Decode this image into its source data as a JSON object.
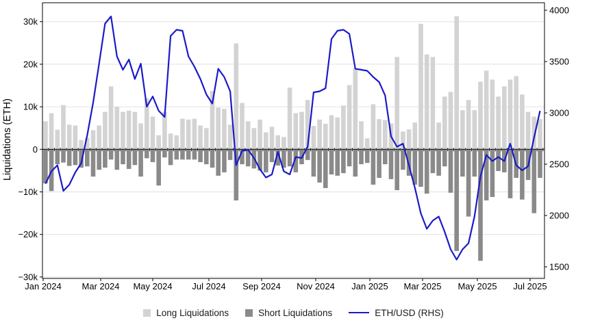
{
  "chart_data": {
    "type": "combo",
    "title": "",
    "ylabel_left": "Liquidations (ETH)",
    "x_tick_labels": [
      "Jan 2024",
      "Mar 2024",
      "May 2024",
      "Jul 2024",
      "Sep 2024",
      "Nov 2024",
      "Jan 2025",
      "Mar 2025",
      "May 2025",
      "Jul 2025"
    ],
    "y_left_tick_labels": [
      "30k",
      "20k",
      "10k",
      "0",
      "−10k",
      "−20k",
      "−30k"
    ],
    "y_left_tick_values_k": [
      30,
      20,
      10,
      0,
      -10,
      -20,
      -30
    ],
    "y_right_tick_labels": [
      "4000",
      "3500",
      "3000",
      "2500",
      "2000",
      "1500"
    ],
    "y_right_tick_values": [
      4000,
      3500,
      3000,
      2500,
      2000,
      1500
    ],
    "ylim_left_k": [
      -30.5,
      34.5
    ],
    "ylim_right": [
      1500,
      4030
    ],
    "grid": "horizontal-left-axis-only",
    "legend_position": "bottom-center",
    "x_frequency": "weekly",
    "series": [
      {
        "name": "Long Liquidations",
        "type": "bar",
        "axis": "left",
        "color": "#d3d3d3",
        "units": "thousand ETH",
        "values_k_eth": [
          6.6,
          8.5,
          4.6,
          10.4,
          5.8,
          5.6,
          2.2,
          2.7,
          4.5,
          5.6,
          8.8,
          14.8,
          10.0,
          8.8,
          9.1,
          8.8,
          6.1,
          12.0,
          7.7,
          3.3,
          8.8,
          3.7,
          3.3,
          7.2,
          7.0,
          7.2,
          5.6,
          5.0,
          13.7,
          9.8,
          9.5,
          5.8,
          24.9,
          10.9,
          6.6,
          5.0,
          7.0,
          4.0,
          5.3,
          3.3,
          2.9,
          14.5,
          8.5,
          8.8,
          11.6,
          5.5,
          7.0,
          6.0,
          8.0,
          7.5,
          10.3,
          15.1,
          19.1,
          6.6,
          2.6,
          10.6,
          7.1,
          6.9,
          6.1,
          21.7,
          4.2,
          4.7,
          6.3,
          29.5,
          22.3,
          21.7,
          6.3,
          12.4,
          13.5,
          31.3,
          9.2,
          11.6,
          9.2,
          15.9,
          18.5,
          16.4,
          12.4,
          14.8,
          16.4,
          17.2,
          12.9,
          8.8,
          7.7,
          7.1
        ]
      },
      {
        "name": "Short Liquidations",
        "type": "bar",
        "axis": "left",
        "color": "#8a8a8a",
        "units": "thousand ETH",
        "values_k_eth": [
          -8.0,
          -9.8,
          -3.5,
          -3.1,
          -3.9,
          -3.7,
          -4.3,
          -4.0,
          -6.4,
          -4.8,
          -4.3,
          -2.4,
          -4.8,
          -3.5,
          -4.6,
          -3.7,
          -6.4,
          -2.1,
          -3.0,
          -8.5,
          -1.9,
          -3.7,
          -2.4,
          -2.4,
          -2.4,
          -2.4,
          -3.0,
          -3.5,
          -4.3,
          -6.2,
          -5.4,
          -2.5,
          -12.0,
          -3.5,
          -4.0,
          -4.5,
          -5.0,
          -5.4,
          -3.0,
          -3.8,
          -4.3,
          -4.0,
          -5.4,
          -3.5,
          -2.5,
          -6.4,
          -7.8,
          -9.1,
          -5.9,
          -6.2,
          -5.6,
          -4.0,
          -6.4,
          -3.5,
          -3.2,
          -8.3,
          -6.7,
          -3.5,
          -7.0,
          -9.6,
          -4.8,
          -6.2,
          -8.3,
          -8.8,
          -10.4,
          -5.6,
          -6.2,
          -4.0,
          -10.2,
          -23.9,
          -6.4,
          -15.8,
          -6.4,
          -26.2,
          -12.0,
          -11.2,
          -5.1,
          -5.4,
          -11.5,
          -6.7,
          -11.8,
          -7.2,
          -15.0,
          -6.7
        ]
      },
      {
        "name": "ETH/USD (RHS)",
        "type": "line",
        "axis": "right",
        "color": "#1a1ac8",
        "units": "USD",
        "values_usd": [
          2310,
          2430,
          2490,
          2240,
          2300,
          2420,
          2510,
          2780,
          3100,
          3480,
          3870,
          3940,
          3550,
          3420,
          3520,
          3330,
          3480,
          3060,
          3160,
          3020,
          2960,
          3750,
          3810,
          3800,
          3550,
          3450,
          3330,
          3180,
          3090,
          3430,
          3350,
          3210,
          2490,
          2630,
          2640,
          2560,
          2450,
          2370,
          2400,
          2620,
          2430,
          2400,
          2570,
          2560,
          2670,
          3200,
          3210,
          3240,
          3720,
          3800,
          3810,
          3770,
          3430,
          3420,
          3410,
          3350,
          3300,
          3170,
          2770,
          2670,
          2700,
          2490,
          2270,
          2020,
          1870,
          1950,
          1990,
          1840,
          1670,
          1570,
          1670,
          1730,
          1990,
          2380,
          2590,
          2530,
          2570,
          2530,
          2700,
          2490,
          2440,
          2480,
          2760,
          3020
        ]
      }
    ],
    "colors": {
      "long_bar": "#d3d3d3",
      "short_bar": "#8a8a8a",
      "price_line": "#1a1ac8",
      "gridline": "#e0e0e0",
      "axis": "#000000"
    }
  },
  "legend": {
    "long_label": "Long Liquidations",
    "short_label": "Short Liquidations",
    "line_label": "ETH/USD (RHS)"
  }
}
